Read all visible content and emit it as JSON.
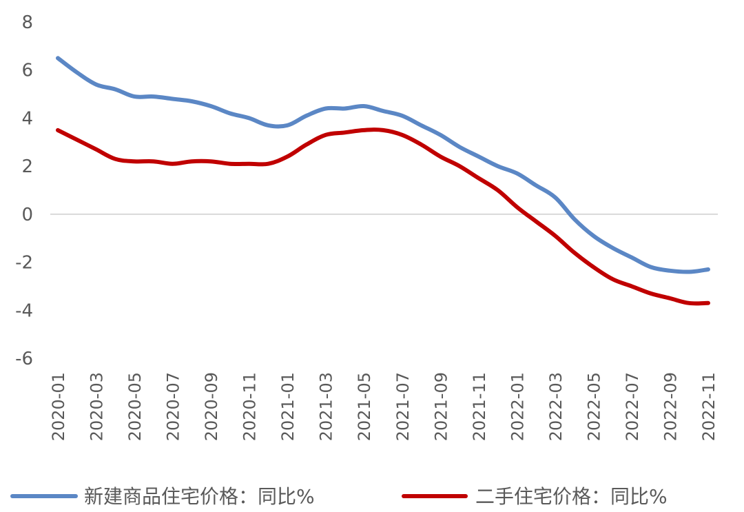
{
  "chart_data": {
    "type": "line",
    "title": "",
    "xlabel": "",
    "ylabel": "",
    "ylim": [
      -6,
      8
    ],
    "yticks": [
      8,
      6,
      4,
      2,
      0,
      -2,
      -4,
      -6
    ],
    "ytick_labels": [
      "8",
      "6",
      "4",
      "2",
      "0",
      "-2",
      "-4",
      "-6"
    ],
    "zero_line": true,
    "grid": false,
    "legend_position": "bottom",
    "x": [
      "2020-01",
      "2020-02",
      "2020-03",
      "2020-04",
      "2020-05",
      "2020-06",
      "2020-07",
      "2020-08",
      "2020-09",
      "2020-10",
      "2020-11",
      "2020-12",
      "2021-01",
      "2021-02",
      "2021-03",
      "2021-04",
      "2021-05",
      "2021-06",
      "2021-07",
      "2021-08",
      "2021-09",
      "2021-10",
      "2021-11",
      "2021-12",
      "2022-01",
      "2022-02",
      "2022-03",
      "2022-04",
      "2022-05",
      "2022-06",
      "2022-07",
      "2022-08",
      "2022-09",
      "2022-10",
      "2022-11"
    ],
    "xtick_labels": [
      "2020-01",
      "2020-03",
      "2020-05",
      "2020-07",
      "2020-09",
      "2020-11",
      "2021-01",
      "2021-03",
      "2021-05",
      "2021-07",
      "2021-09",
      "2021-11",
      "2022-01",
      "2022-03",
      "2022-05",
      "2022-07",
      "2022-09",
      "2022-11"
    ],
    "series": [
      {
        "name": "新建商品住宅价格：同比%",
        "color": "#5b87c5",
        "values": [
          6.5,
          5.9,
          5.4,
          5.2,
          4.9,
          4.9,
          4.8,
          4.7,
          4.5,
          4.2,
          4.0,
          3.7,
          3.7,
          4.1,
          4.4,
          4.4,
          4.5,
          4.3,
          4.1,
          3.7,
          3.3,
          2.8,
          2.4,
          2.0,
          1.7,
          1.2,
          0.7,
          -0.2,
          -0.9,
          -1.4,
          -1.8,
          -2.2,
          -2.35,
          -2.4,
          -2.3
        ]
      },
      {
        "name": "二手住宅价格：同比%",
        "color": "#c00000",
        "values": [
          3.5,
          3.1,
          2.7,
          2.3,
          2.2,
          2.2,
          2.1,
          2.2,
          2.2,
          2.1,
          2.1,
          2.1,
          2.4,
          2.9,
          3.3,
          3.4,
          3.5,
          3.5,
          3.3,
          2.9,
          2.4,
          2.0,
          1.5,
          1.0,
          0.3,
          -0.3,
          -0.9,
          -1.6,
          -2.2,
          -2.7,
          -3.0,
          -3.3,
          -3.5,
          -3.7,
          -3.7
        ]
      }
    ]
  }
}
